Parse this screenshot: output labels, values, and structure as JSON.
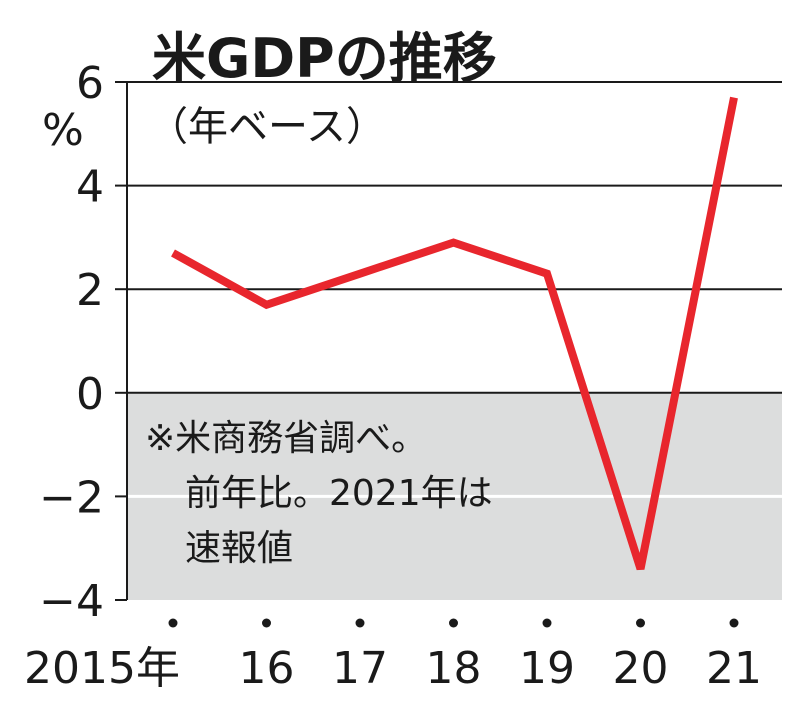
{
  "chart_data": {
    "type": "line",
    "title": "米GDPの推移",
    "subtitle": "（年ベース）",
    "y_unit": "%",
    "x": [
      "2015年",
      "16",
      "17",
      "18",
      "19",
      "20",
      "21"
    ],
    "series": [
      {
        "values": [
          2.7,
          1.7,
          2.3,
          2.9,
          2.3,
          -3.4,
          5.7
        ]
      }
    ],
    "ylim": [
      -4,
      6
    ],
    "yticks": [
      "6",
      "4",
      "2",
      "0",
      "−2",
      "−4"
    ],
    "ytick_values": [
      6,
      4,
      2,
      0,
      -2,
      -4
    ],
    "grid": true,
    "negative_region_shaded": true,
    "note_lines": [
      "※米商務省調べ。",
      "前年比。2021年は",
      "速報値"
    ],
    "colors": {
      "line": "#e8262d",
      "shade": "#dcdddd",
      "grid": "#1a1a1a"
    }
  }
}
